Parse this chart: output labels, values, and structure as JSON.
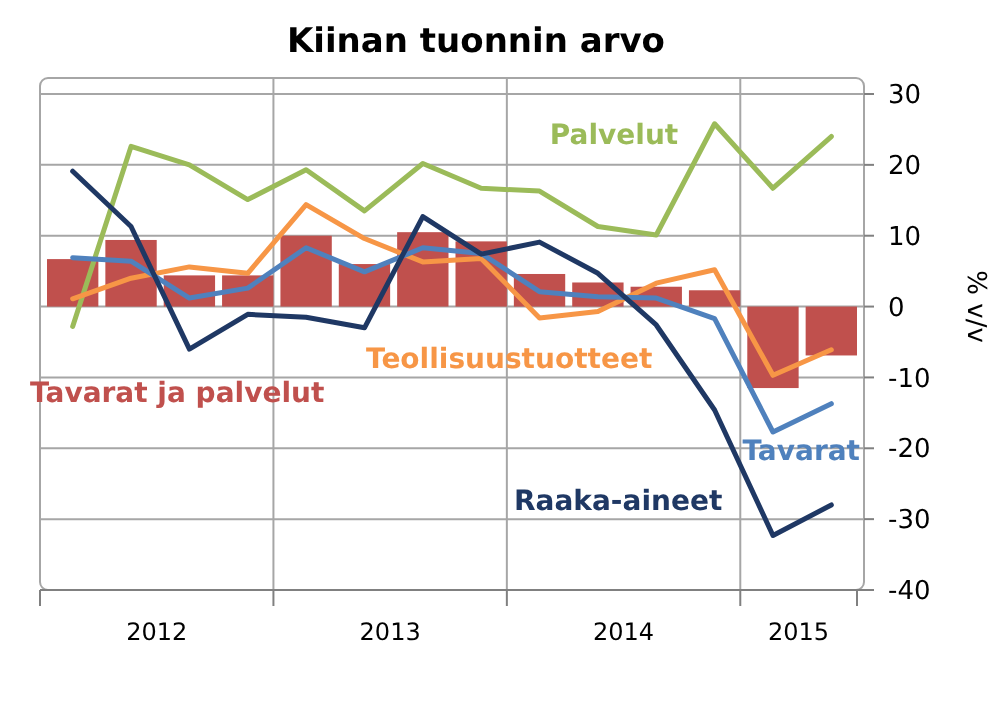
{
  "chart_data": {
    "type": "line",
    "title": "Kiinan tuonnin arvo",
    "ylabel": "% v/v",
    "categories": [
      null,
      null,
      null,
      null,
      null,
      null,
      null,
      null,
      null,
      null,
      null,
      null,
      null,
      null
    ],
    "annotations": [
      "2012",
      "2013",
      "2014",
      "2015"
    ],
    "ylim": [
      -40,
      30
    ],
    "yticks": [
      -40,
      -30,
      -20,
      -10,
      0,
      10,
      20,
      30
    ],
    "grid": true,
    "legend": false,
    "series": [
      {
        "name": "Tavarat ja palvelut",
        "type": "bar",
        "color": "#c0504d",
        "values": [
          6.7,
          9.4,
          4.4,
          4.4,
          10,
          6,
          10.5,
          9.2,
          4.6,
          3.4,
          2.8,
          2.3,
          -11.5,
          -6.9
        ]
      },
      {
        "name": "Palvelut",
        "color": "#9bbb59",
        "values": [
          -2.8,
          22.6,
          20,
          15.1,
          19.3,
          13.5,
          20.2,
          16.7,
          16.3,
          11.3,
          10.1,
          25.8,
          16.7,
          24
        ]
      },
      {
        "name": "Teollisuustuotteet",
        "color": "#f79646",
        "values": [
          1.1,
          4,
          5.6,
          4.7,
          14.4,
          9.6,
          6.3,
          6.8,
          -1.6,
          -0.7,
          3.3,
          5.2,
          -9.7,
          -6.1
        ]
      },
      {
        "name": "Tavarat",
        "color": "#4f81bd",
        "values": [
          6.9,
          6.4,
          1.2,
          2.6,
          8.3,
          4.9,
          8.3,
          7.5,
          2.1,
          1.4,
          1.2,
          -1.7,
          -17.7,
          -13.7
        ]
      },
      {
        "name": "Raaka-aineet",
        "color": "#1f3864",
        "values": [
          19.1,
          11.3,
          -6,
          -1.1,
          -1.5,
          -3,
          12.7,
          7.4,
          9.1,
          4.7,
          -2.6,
          -14.6,
          -32.3,
          -28
        ]
      }
    ]
  }
}
